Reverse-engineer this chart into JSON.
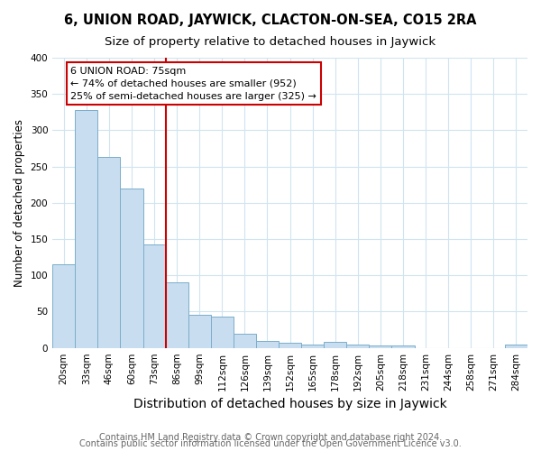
{
  "title": "6, UNION ROAD, JAYWICK, CLACTON-ON-SEA, CO15 2RA",
  "subtitle": "Size of property relative to detached houses in Jaywick",
  "xlabel": "Distribution of detached houses by size in Jaywick",
  "ylabel": "Number of detached properties",
  "categories": [
    "20sqm",
    "33sqm",
    "46sqm",
    "60sqm",
    "73sqm",
    "86sqm",
    "99sqm",
    "112sqm",
    "126sqm",
    "139sqm",
    "152sqm",
    "165sqm",
    "178sqm",
    "192sqm",
    "205sqm",
    "218sqm",
    "231sqm",
    "244sqm",
    "258sqm",
    "271sqm",
    "284sqm"
  ],
  "values": [
    115,
    328,
    263,
    220,
    142,
    90,
    45,
    43,
    20,
    10,
    7,
    5,
    8,
    5,
    3,
    3,
    0,
    0,
    0,
    0,
    5
  ],
  "bar_color": "#c8ddef",
  "bar_edge_color": "#7aaecb",
  "red_line_x": 4.5,
  "annotation_text": "6 UNION ROAD: 75sqm\n← 74% of detached houses are smaller (952)\n25% of semi-detached houses are larger (325) →",
  "annotation_box_color": "white",
  "annotation_box_edge_color": "#cc0000",
  "red_line_color": "#cc0000",
  "ylim": [
    0,
    400
  ],
  "yticks": [
    0,
    50,
    100,
    150,
    200,
    250,
    300,
    350,
    400
  ],
  "footer1": "Contains HM Land Registry data © Crown copyright and database right 2024.",
  "footer2": "Contains public sector information licensed under the Open Government Licence v3.0.",
  "background_color": "white",
  "grid_color": "#d0e4f0",
  "title_fontsize": 10.5,
  "subtitle_fontsize": 9.5,
  "xlabel_fontsize": 10,
  "ylabel_fontsize": 8.5,
  "tick_fontsize": 7.5,
  "annotation_fontsize": 8,
  "footer_fontsize": 7
}
